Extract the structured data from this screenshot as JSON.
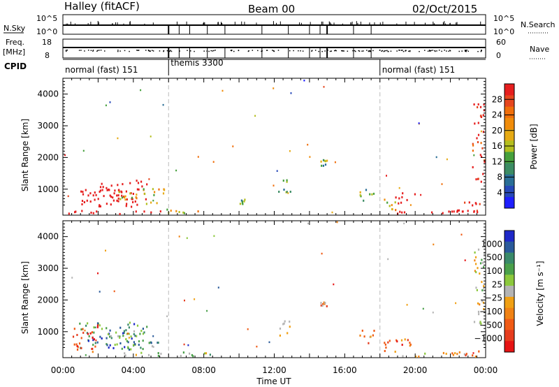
{
  "header": {
    "station": "Halley (fitACF)",
    "beam": "Beam 00",
    "date": "02/Oct/2015"
  },
  "top_panels": {
    "nsky_label": "N.Sky",
    "nsky_ticks": [
      "10^5",
      "10^0"
    ],
    "nsearch_label": "N.Search",
    "nsearch_ticks": [
      "10^5",
      "10^0"
    ],
    "freq_label": "Freq.",
    "freq_unit": "[MHz]",
    "freq_ticks": [
      "18",
      "8"
    ],
    "nave_label": "Nave",
    "nave_ticks": [
      "60",
      "0"
    ],
    "cpid_label": "CPID",
    "cpid_segments": [
      {
        "label": "normal (fast) 151",
        "start_h": 0,
        "end_h": 6
      },
      {
        "label": "themis 3300",
        "start_h": 6,
        "end_h": 18
      },
      {
        "label": "normal (fast) 151",
        "start_h": 18,
        "end_h": 24
      }
    ]
  },
  "colors": {
    "power_scale": [
      "#1e1eff",
      "#2648b8",
      "#2a6e96",
      "#3c8c64",
      "#46a03c",
      "#b4be1e",
      "#e6aa14",
      "#f08c0a",
      "#f06e0a",
      "#e6461e",
      "#e61e1e"
    ],
    "velocity_scale": [
      "#1e28c8",
      "#2a5a9a",
      "#3a8a6a",
      "#4aa04a",
      "#8cc83c",
      "#b4b4b4",
      "#f0a014",
      "#f08214",
      "#f05a14",
      "#e63c1e",
      "#e61414"
    ]
  },
  "chart_data": [
    {
      "type": "heatmap",
      "name": "power",
      "xlabel": "",
      "ylabel": "Slant Range [km]",
      "xlim": [
        0,
        24
      ],
      "ylim": [
        180,
        4500
      ],
      "yticks": [
        "1000",
        "2000",
        "3000",
        "4000"
      ],
      "colorbar_label": "Power [dB]",
      "colorbar_ticks": [
        "4",
        "8",
        "12",
        "16",
        "20",
        "24",
        "28"
      ],
      "colorbar_range": [
        0,
        32
      ],
      "clusters": [
        {
          "t": 0.9,
          "t2": 4.8,
          "r": 400,
          "r2": 1250,
          "v": 12
        },
        {
          "t": 1.2,
          "t2": 3.2,
          "r": 700,
          "r2": 1100,
          "v": 18
        },
        {
          "t": 0.3,
          "t2": 6.0,
          "r": 180,
          "r2": 300,
          "v": 24
        },
        {
          "t": 3.0,
          "t2": 5.8,
          "r": 500,
          "r2": 1000,
          "v": 6
        },
        {
          "t": 5.8,
          "t2": 8.5,
          "r": 180,
          "r2": 330,
          "v": 6
        },
        {
          "t": 12.2,
          "t2": 12.9,
          "r": 800,
          "r2": 1350,
          "v": 3
        },
        {
          "t": 10.0,
          "t2": 10.3,
          "r": 500,
          "r2": 700,
          "v": 4
        },
        {
          "t": 14.6,
          "t2": 15.0,
          "r": 1700,
          "r2": 1900,
          "v": 4
        },
        {
          "t": 16.8,
          "t2": 17.9,
          "r": 600,
          "r2": 1000,
          "v": 4
        },
        {
          "t": 18.2,
          "t2": 18.9,
          "r": 300,
          "r2": 700,
          "v": 6
        },
        {
          "t": 18.7,
          "t2": 20.0,
          "r": 500,
          "r2": 850,
          "v": 12
        },
        {
          "t": 18.8,
          "t2": 23.0,
          "r": 180,
          "r2": 300,
          "v": 20
        },
        {
          "t": 22.6,
          "t2": 23.8,
          "r": 200,
          "r2": 600,
          "v": 10
        },
        {
          "t": 22.0,
          "t2": 23.6,
          "r": 250,
          "r2": 300,
          "v": 22
        },
        {
          "t": 23.2,
          "t2": 23.9,
          "r": 1200,
          "r2": 3700,
          "v": 10
        }
      ]
    },
    {
      "type": "heatmap",
      "name": "velocity",
      "xlabel": "Time UT",
      "ylabel": "Slant Range [km]",
      "xlim": [
        0,
        24
      ],
      "ylim": [
        180,
        4500
      ],
      "xticks": [
        "00:00",
        "04:00",
        "08:00",
        "12:00",
        "16:00",
        "20:00",
        "00:00"
      ],
      "yticks": [
        "1000",
        "2000",
        "3000",
        "4000"
      ],
      "colorbar_label": "Velocity [m s⁻¹]",
      "colorbar_ticks": [
        "1000",
        "500",
        "100",
        "25",
        "−25",
        "−100",
        "−500",
        "−1000"
      ],
      "clusters": [
        {
          "t": 0.9,
          "t2": 4.8,
          "r": 400,
          "r2": 1250,
          "v": 2
        },
        {
          "t": 0.5,
          "t2": 2.0,
          "r": 300,
          "r2": 1200,
          "v": 9
        },
        {
          "t": 2.5,
          "t2": 5.5,
          "r": 400,
          "r2": 1000,
          "v": 3
        },
        {
          "t": 3.0,
          "t2": 6.0,
          "r": 180,
          "r2": 320,
          "v": 4
        },
        {
          "t": 5.8,
          "t2": 8.5,
          "r": 180,
          "r2": 330,
          "v": 4
        },
        {
          "t": 12.2,
          "t2": 12.9,
          "r": 800,
          "r2": 1350,
          "v": 4
        },
        {
          "t": 14.6,
          "t2": 15.0,
          "r": 1700,
          "r2": 1900,
          "v": 7
        },
        {
          "t": 16.8,
          "t2": 17.9,
          "r": 600,
          "r2": 1000,
          "v": 7
        },
        {
          "t": 18.2,
          "t2": 18.9,
          "r": 300,
          "r2": 700,
          "v": 7
        },
        {
          "t": 18.7,
          "t2": 20.0,
          "r": 500,
          "r2": 850,
          "v": 8
        },
        {
          "t": 19.0,
          "t2": 23.0,
          "r": 180,
          "r2": 300,
          "v": 6
        },
        {
          "t": 22.0,
          "t2": 23.8,
          "r": 180,
          "r2": 350,
          "v": 8
        },
        {
          "t": 23.2,
          "t2": 23.9,
          "r": 1200,
          "r2": 3700,
          "v": 5
        }
      ]
    }
  ]
}
